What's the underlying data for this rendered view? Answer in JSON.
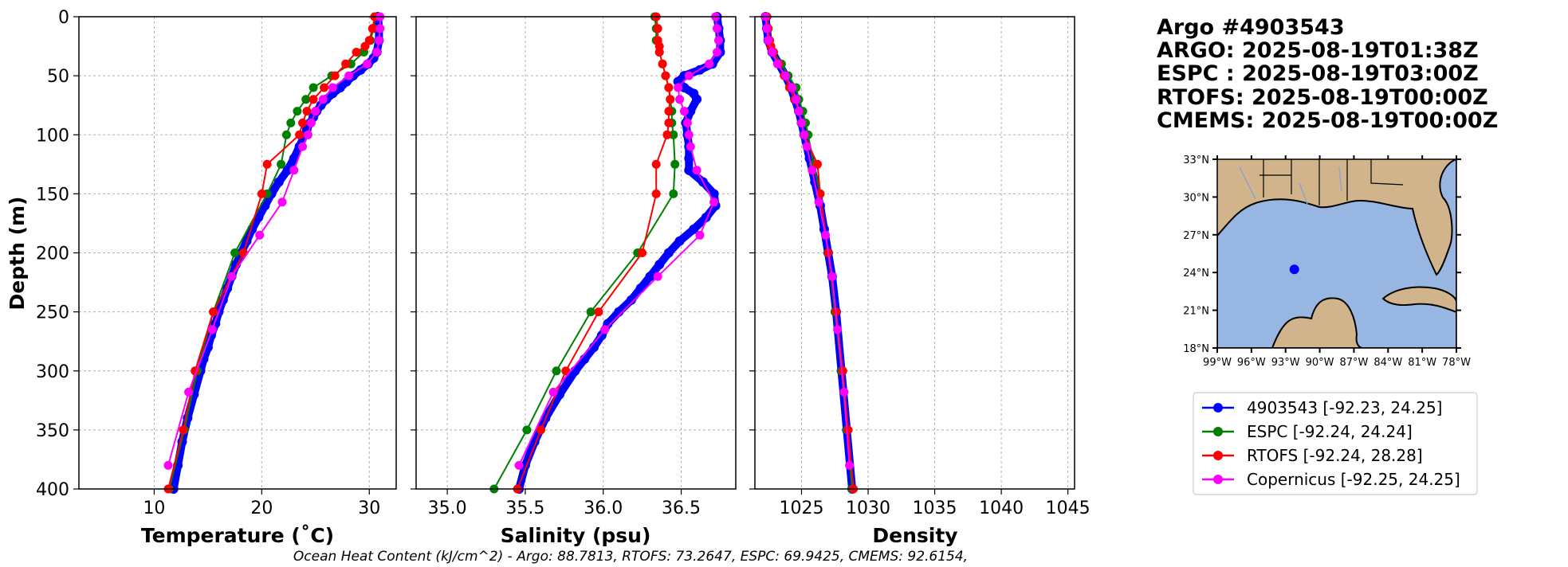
{
  "chart_data": [
    {
      "type": "line",
      "id": "temperature",
      "xlabel": "Temperature (˚C)",
      "ylabel": "Depth (m)",
      "xlim": [
        3,
        32.5
      ],
      "ylim": [
        400,
        0
      ],
      "xticks": [
        10,
        20,
        30
      ],
      "yticks": [
        0,
        50,
        100,
        150,
        200,
        250,
        300,
        350,
        400
      ],
      "grid": true,
      "series": [
        {
          "name": "4903543",
          "color": "#0000ff",
          "depth": [
            0,
            10,
            20,
            30,
            35,
            40,
            45,
            50,
            55,
            60,
            65,
            70,
            75,
            80,
            85,
            90,
            95,
            100,
            110,
            120,
            130,
            140,
            150,
            160,
            170,
            180,
            190,
            200,
            210,
            220,
            230,
            240,
            250,
            260,
            270,
            280,
            290,
            300,
            320,
            340,
            360,
            380,
            400
          ],
          "values": [
            30.8,
            30.9,
            30.9,
            30.7,
            30.4,
            29.9,
            29.2,
            28.5,
            27.9,
            27.3,
            26.6,
            26.0,
            25.5,
            25.1,
            24.8,
            24.5,
            24.2,
            24.0,
            23.5,
            23.0,
            22.4,
            21.6,
            20.9,
            20.3,
            19.7,
            19.1,
            18.6,
            18.1,
            17.6,
            17.2,
            16.8,
            16.4,
            16.0,
            15.7,
            15.3,
            15.0,
            14.6,
            14.3,
            13.7,
            13.1,
            12.6,
            12.2,
            11.8
          ]
        },
        {
          "name": "ESPC",
          "color": "#008000",
          "depth": [
            0,
            10,
            20,
            30,
            40,
            50,
            60,
            70,
            80,
            90,
            100,
            125,
            150,
            200,
            250,
            300,
            350,
            400
          ],
          "values": [
            30.5,
            30.4,
            30.1,
            29.5,
            28.3,
            26.5,
            24.8,
            24.1,
            23.3,
            22.7,
            22.3,
            21.8,
            20.5,
            17.5,
            15.5,
            14.0,
            12.8,
            11.4
          ]
        },
        {
          "name": "RTOFS",
          "color": "#ff0000",
          "depth": [
            0,
            10,
            20,
            25,
            30,
            40,
            50,
            60,
            70,
            80,
            90,
            100,
            125,
            150,
            200,
            250,
            300,
            350,
            400
          ],
          "values": [
            30.5,
            30.3,
            30.0,
            29.6,
            28.8,
            27.8,
            26.8,
            25.8,
            24.8,
            24.2,
            23.8,
            23.5,
            20.5,
            20.0,
            18.3,
            15.5,
            13.8,
            12.7,
            11.3
          ]
        },
        {
          "name": "Copernicus",
          "color": "#ff00ff",
          "depth": [
            0,
            10,
            20,
            30,
            40,
            50,
            60,
            70,
            80,
            90,
            100,
            110,
            130,
            157,
            185,
            220,
            265,
            318,
            380
          ],
          "values": [
            31.0,
            31.0,
            30.9,
            30.7,
            29.8,
            28.1,
            26.6,
            25.7,
            25.0,
            24.6,
            24.3,
            23.8,
            23.0,
            21.9,
            19.8,
            17.2,
            15.4,
            13.2,
            11.3
          ]
        }
      ]
    },
    {
      "type": "line",
      "id": "salinity",
      "xlabel": "Salinity (psu)",
      "xlim": [
        34.8,
        36.85
      ],
      "ylim": [
        400,
        0
      ],
      "xticks": [
        35.0,
        35.5,
        36.0,
        36.5
      ],
      "grid": true,
      "series": [
        {
          "name": "4903543",
          "color": "#0000ff",
          "depth": [
            0,
            10,
            20,
            30,
            40,
            45,
            50,
            55,
            60,
            65,
            70,
            80,
            90,
            100,
            110,
            120,
            130,
            140,
            150,
            160,
            170,
            180,
            190,
            200,
            210,
            220,
            230,
            240,
            250,
            260,
            270,
            280,
            290,
            300,
            320,
            340,
            360,
            380,
            400
          ],
          "values": [
            36.73,
            36.74,
            36.75,
            36.75,
            36.7,
            36.62,
            36.52,
            36.48,
            36.52,
            36.58,
            36.6,
            36.56,
            36.53,
            36.54,
            36.55,
            36.55,
            36.55,
            36.64,
            36.71,
            36.72,
            36.66,
            36.58,
            36.49,
            36.42,
            36.36,
            36.3,
            36.24,
            36.18,
            36.1,
            36.03,
            35.99,
            35.94,
            35.88,
            35.82,
            35.72,
            35.63,
            35.56,
            35.5,
            35.46
          ]
        },
        {
          "name": "ESPC",
          "color": "#008000",
          "depth": [
            0,
            10,
            20,
            30,
            40,
            50,
            60,
            70,
            80,
            90,
            100,
            125,
            150,
            200,
            250,
            300,
            350,
            400
          ],
          "values": [
            36.33,
            36.34,
            36.34,
            36.36,
            36.38,
            36.4,
            36.42,
            36.43,
            36.44,
            36.44,
            36.45,
            36.46,
            36.45,
            36.22,
            35.92,
            35.7,
            35.51,
            35.3
          ]
        },
        {
          "name": "RTOFS",
          "color": "#ff0000",
          "depth": [
            0,
            10,
            20,
            25,
            30,
            40,
            50,
            60,
            70,
            80,
            90,
            100,
            125,
            150,
            200,
            250,
            300,
            350,
            400
          ],
          "values": [
            36.34,
            36.35,
            36.35,
            36.36,
            36.36,
            36.38,
            36.4,
            36.42,
            36.43,
            36.42,
            36.42,
            36.41,
            36.34,
            36.34,
            36.25,
            35.97,
            35.76,
            35.6,
            35.45
          ]
        },
        {
          "name": "Copernicus",
          "color": "#ff00ff",
          "depth": [
            0,
            10,
            20,
            30,
            40,
            50,
            60,
            70,
            80,
            90,
            100,
            110,
            130,
            157,
            185,
            220,
            265,
            318,
            380
          ],
          "values": [
            36.72,
            36.73,
            36.74,
            36.73,
            36.68,
            36.55,
            36.48,
            36.49,
            36.52,
            36.54,
            36.55,
            36.56,
            36.6,
            36.71,
            36.62,
            36.35,
            36.01,
            35.68,
            35.46
          ]
        }
      ]
    },
    {
      "type": "line",
      "id": "density",
      "xlabel": "Density",
      "xlim": [
        1021.5,
        1045.5
      ],
      "ylim": [
        400,
        0
      ],
      "xticks": [
        1025,
        1030,
        1035,
        1040,
        1045
      ],
      "grid": true,
      "series": [
        {
          "name": "4903543",
          "color": "#0000ff",
          "depth": [
            0,
            10,
            20,
            30,
            40,
            50,
            60,
            70,
            80,
            90,
            100,
            120,
            140,
            160,
            180,
            200,
            220,
            250,
            300,
            350,
            400
          ],
          "values": [
            1022.3,
            1022.4,
            1022.5,
            1022.8,
            1023.3,
            1023.8,
            1024.2,
            1024.5,
            1024.8,
            1025.0,
            1025.2,
            1025.6,
            1026.0,
            1026.4,
            1026.7,
            1027.0,
            1027.3,
            1027.6,
            1028.0,
            1028.4,
            1028.8
          ]
        },
        {
          "name": "ESPC",
          "color": "#008000",
          "depth": [
            0,
            10,
            20,
            30,
            40,
            50,
            60,
            70,
            80,
            90,
            100,
            125,
            150,
            200,
            250,
            300,
            350,
            400
          ],
          "values": [
            1022.4,
            1022.5,
            1022.6,
            1022.9,
            1023.5,
            1024.0,
            1024.6,
            1024.8,
            1025.1,
            1025.3,
            1025.5,
            1025.9,
            1026.4,
            1027.0,
            1027.5,
            1028.0,
            1028.4,
            1028.8
          ]
        },
        {
          "name": "RTOFS",
          "color": "#ff0000",
          "depth": [
            0,
            10,
            20,
            25,
            30,
            40,
            50,
            60,
            70,
            80,
            90,
            100,
            125,
            150,
            200,
            250,
            300,
            350,
            400
          ],
          "values": [
            1022.4,
            1022.5,
            1022.6,
            1022.7,
            1022.9,
            1023.3,
            1023.7,
            1024.1,
            1024.5,
            1024.8,
            1025.0,
            1025.2,
            1026.2,
            1026.4,
            1027.0,
            1027.6,
            1028.1,
            1028.5,
            1028.9
          ]
        },
        {
          "name": "Copernicus",
          "color": "#ff00ff",
          "depth": [
            0,
            10,
            20,
            30,
            40,
            50,
            60,
            70,
            80,
            90,
            100,
            110,
            130,
            157,
            185,
            220,
            265,
            318,
            380
          ],
          "values": [
            1022.3,
            1022.4,
            1022.5,
            1022.8,
            1023.2,
            1023.8,
            1024.3,
            1024.6,
            1024.8,
            1025.0,
            1025.2,
            1025.4,
            1025.8,
            1026.3,
            1026.8,
            1027.3,
            1027.7,
            1028.2,
            1028.6
          ]
        }
      ]
    }
  ],
  "info": {
    "lines": [
      "Argo #4903543",
      "ARGO: 2025-08-19T01:38Z",
      "ESPC : 2025-08-19T03:00Z",
      "RTOFS: 2025-08-19T00:00Z",
      "CMEMS: 2025-08-19T00:00Z"
    ]
  },
  "map": {
    "lon_range": [
      -99,
      -78
    ],
    "lat_range": [
      18,
      33
    ],
    "lon_labels": [
      "99°W",
      "96°W",
      "93°W",
      "90°W",
      "87°W",
      "84°W",
      "81°W",
      "78°W"
    ],
    "lat_labels": [
      "33°N",
      "30°N",
      "27°N",
      "24°N",
      "21°N",
      "18°N"
    ],
    "float_position": {
      "lon": -92.23,
      "lat": 24.25
    },
    "land_color": "#d2b48c",
    "ocean_color": "#97b6e1",
    "marker_color": "#0000ff"
  },
  "legend": {
    "entries": [
      {
        "label": "4903543 [-92.23, 24.25]",
        "color": "#0000ff"
      },
      {
        "label": "ESPC [-92.24, 24.24]",
        "color": "#008000"
      },
      {
        "label": "RTOFS [-92.24, 28.28]",
        "color": "#ff0000"
      },
      {
        "label": "Copernicus [-92.25, 24.25]",
        "color": "#ff00ff"
      }
    ]
  },
  "footer": {
    "ohc_text": "Ocean Heat Content (kJ/cm^2) - Argo: 88.7813,  RTOFS: 73.2647,  ESPC: 69.9425,  CMEMS: 92.6154,"
  }
}
